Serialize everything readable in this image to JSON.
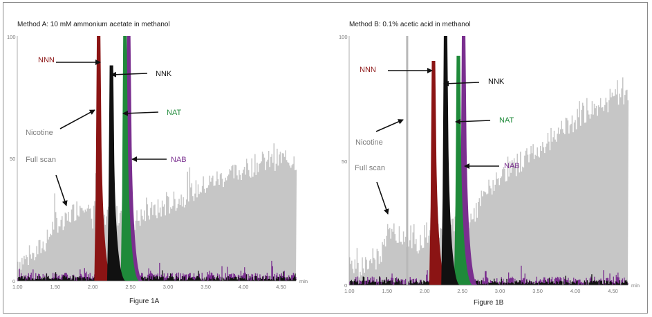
{
  "figure": {
    "captions": [
      "Figure 1A",
      "Figure 1B"
    ]
  },
  "chart_data": [
    {
      "type": "area",
      "title": "Method A: 10  mM ammonium acetate in methanol",
      "caption": "Figure 1A",
      "x_unit": "min",
      "xlim": [
        1.0,
        4.7
      ],
      "ylim": [
        0,
        100
      ],
      "x_tick_labels": [
        "1.00",
        "1.50",
        "2.00",
        "2.50",
        "3.00",
        "3.50",
        "4.00",
        "4.50"
      ],
      "y_tick_labels": [
        "100",
        "50",
        "0"
      ],
      "series": [
        {
          "name": "Full scan",
          "color": "#c6c6c6",
          "points": [
            [
              1.0,
              8
            ],
            [
              1.2,
              10
            ],
            [
              1.4,
              17
            ],
            [
              1.5,
              25
            ],
            [
              1.6,
              22
            ],
            [
              1.7,
              27
            ],
            [
              1.8,
              30
            ],
            [
              1.9,
              33
            ],
            [
              2.0,
              22
            ],
            [
              2.05,
              55
            ],
            [
              2.1,
              20
            ],
            [
              2.2,
              26
            ],
            [
              2.3,
              24
            ],
            [
              2.4,
              30
            ],
            [
              2.5,
              24
            ],
            [
              2.7,
              27
            ],
            [
              3.0,
              31
            ],
            [
              3.3,
              36
            ],
            [
              3.6,
              41
            ],
            [
              3.9,
              44
            ],
            [
              4.2,
              48
            ],
            [
              4.5,
              50
            ],
            [
              4.7,
              49
            ]
          ]
        },
        {
          "name": "NNN",
          "color": "#8b1414",
          "peak_x": 2.08,
          "peak_y": 100
        },
        {
          "name": "NNK",
          "color": "#111111",
          "peak_x": 2.25,
          "peak_y": 88
        },
        {
          "name": "NAT",
          "color": "#1f8a3a",
          "peak_x": 2.43,
          "peak_y": 100
        },
        {
          "name": "NAB",
          "color": "#7a2f8f",
          "peak_x": 2.48,
          "peak_y": 100
        },
        {
          "name": "Nicotine",
          "color": "#9a9a9a"
        }
      ],
      "annotations": [
        "NNN",
        "NNK",
        "NAT",
        "NAB",
        "Nicotine",
        "Full scan"
      ]
    },
    {
      "type": "area",
      "title": "Method B: 0.1% acetic acid in methanol",
      "caption": "Figure 1B",
      "x_unit": "min",
      "xlim": [
        1.0,
        4.7
      ],
      "ylim": [
        0,
        100
      ],
      "x_tick_labels": [
        "1.00",
        "1.50",
        "2.00",
        "2.50",
        "3.00",
        "3.50",
        "4.00",
        "4.50"
      ],
      "y_tick_labels": [
        "100",
        "50",
        "0"
      ],
      "series": [
        {
          "name": "Full scan",
          "color": "#c6c6c6",
          "points": [
            [
              1.0,
              7
            ],
            [
              1.2,
              8
            ],
            [
              1.4,
              11
            ],
            [
              1.5,
              20
            ],
            [
              1.6,
              22
            ],
            [
              1.7,
              18
            ],
            [
              1.8,
              20
            ],
            [
              1.9,
              16
            ],
            [
              2.0,
              20
            ],
            [
              2.1,
              24
            ],
            [
              2.2,
              22
            ],
            [
              2.4,
              24
            ],
            [
              2.6,
              26
            ],
            [
              2.8,
              36
            ],
            [
              3.0,
              44
            ],
            [
              3.3,
              50
            ],
            [
              3.6,
              57
            ],
            [
              3.9,
              64
            ],
            [
              4.2,
              70
            ],
            [
              4.5,
              75
            ],
            [
              4.7,
              76
            ]
          ]
        },
        {
          "name": "Nicotine",
          "color": "#b8b8b8",
          "peak_x": 1.77,
          "peak_y": 100
        },
        {
          "name": "NNN",
          "color": "#8b1414",
          "peak_x": 2.12,
          "peak_y": 90
        },
        {
          "name": "NNK",
          "color": "#111111",
          "peak_x": 2.28,
          "peak_y": 100
        },
        {
          "name": "NAT",
          "color": "#1f8a3a",
          "peak_x": 2.45,
          "peak_y": 92
        },
        {
          "name": "NAB",
          "color": "#7a2f8f",
          "peak_x": 2.52,
          "peak_y": 100
        }
      ],
      "annotations": [
        "NNN",
        "NNK",
        "NAT",
        "NAB",
        "Nicotine",
        "Full scan"
      ]
    }
  ]
}
